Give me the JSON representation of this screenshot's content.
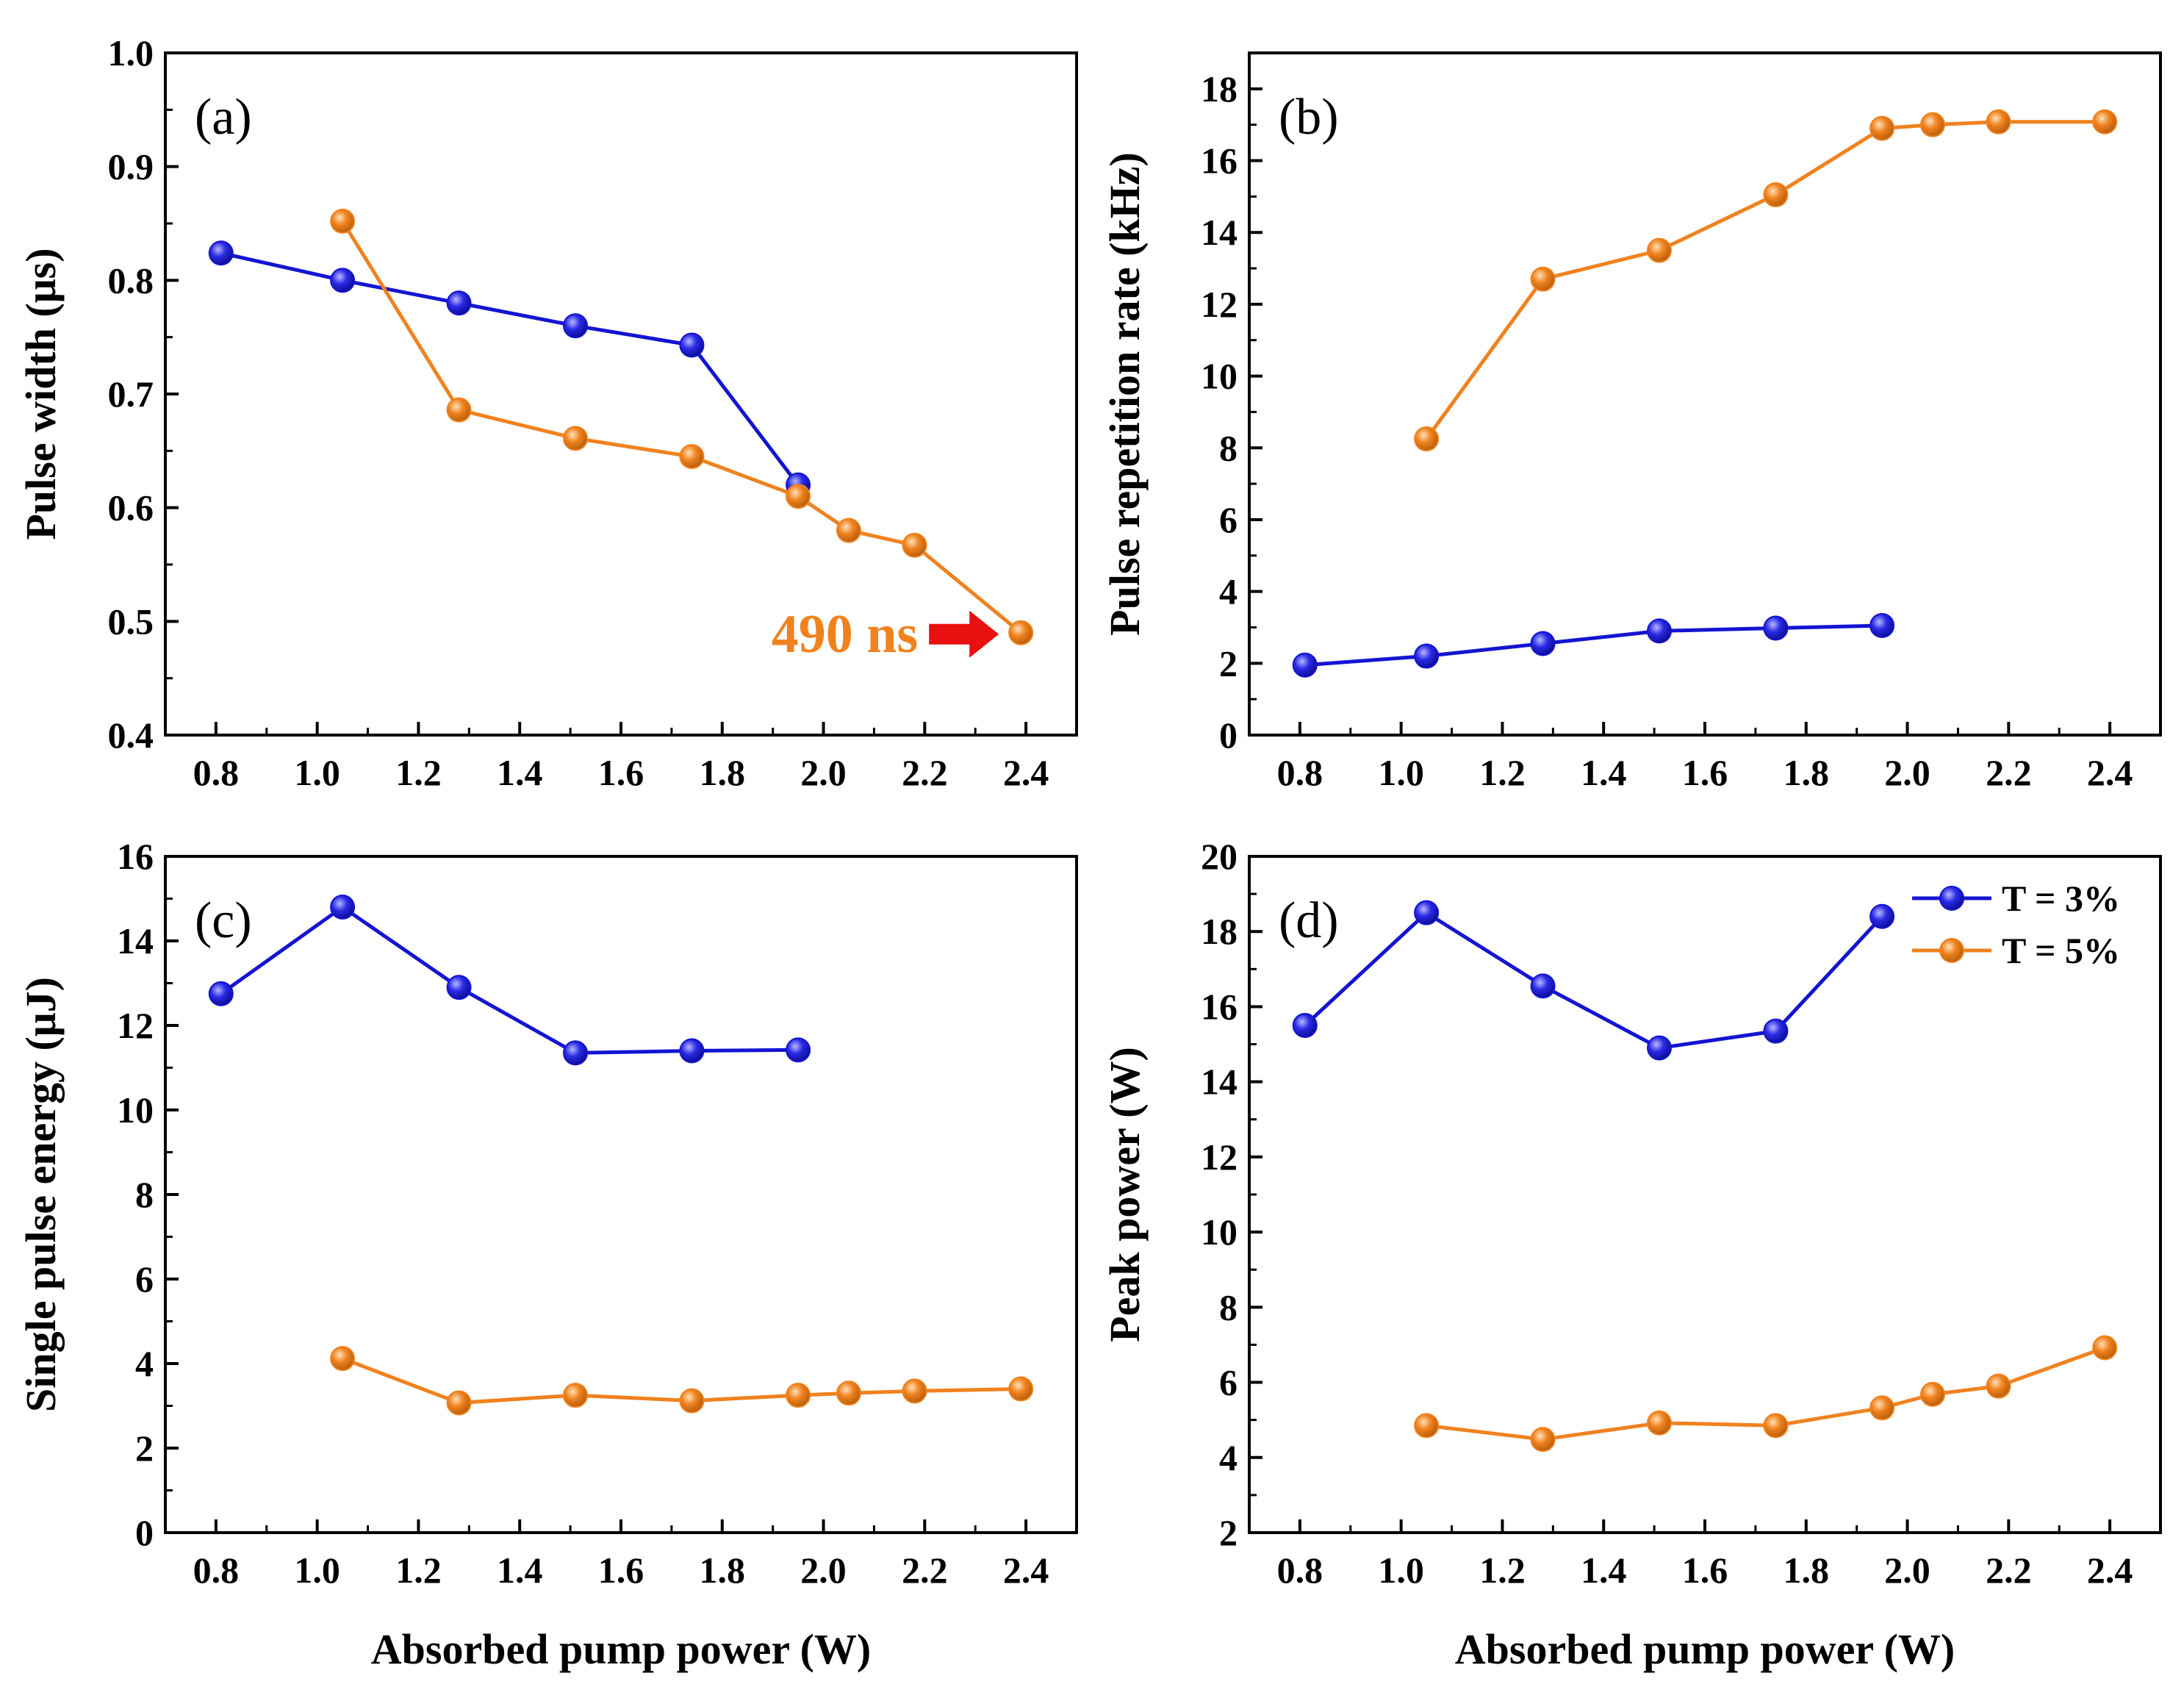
{
  "colors": {
    "series_t3": "#1414D2",
    "series_t5": "#F0821E",
    "arrow": "#E81010",
    "axis": "#000000"
  },
  "chart_data": [
    {
      "id": "a",
      "type": "line",
      "panel_label": "(a)",
      "xlabel": "",
      "ylabel": "Pulse width (μs)",
      "xlim": [
        0.7,
        2.5
      ],
      "ylim": [
        0.4,
        1.0
      ],
      "xticks": [
        0.8,
        1.0,
        1.2,
        1.4,
        1.6,
        1.8,
        2.0,
        2.2,
        2.4
      ],
      "yticks": [
        0.4,
        0.5,
        0.6,
        0.7,
        0.8,
        0.9,
        1.0
      ],
      "xtick_labels": [
        "0.8",
        "1.0",
        "1.2",
        "1.4",
        "1.6",
        "1.8",
        "2.0",
        "2.2",
        "2.4"
      ],
      "ytick_labels": [
        "0.4",
        "0.5",
        "0.6",
        "0.7",
        "0.8",
        "0.9",
        "1.0"
      ],
      "series": [
        {
          "name": "T = 3%",
          "x": [
            0.81,
            1.05,
            1.28,
            1.51,
            1.74,
            1.95
          ],
          "y": [
            0.824,
            0.8,
            0.78,
            0.76,
            0.743,
            0.62
          ]
        },
        {
          "name": "T = 5%",
          "x": [
            1.05,
            1.28,
            1.51,
            1.74,
            1.95,
            2.05,
            2.18,
            2.39
          ],
          "y": [
            0.852,
            0.686,
            0.661,
            0.645,
            0.61,
            0.58,
            0.567,
            0.49
          ]
        }
      ],
      "annotation": {
        "text": "490 ns",
        "points_to_x": 2.39,
        "points_to_y": 0.49
      }
    },
    {
      "id": "b",
      "type": "line",
      "panel_label": "(b)",
      "xlabel": "",
      "ylabel": "Pulse repetition rate (kHz)",
      "xlim": [
        0.7,
        2.5
      ],
      "ylim": [
        0,
        19
      ],
      "xticks": [
        0.8,
        1.0,
        1.2,
        1.4,
        1.6,
        1.8,
        2.0,
        2.2,
        2.4
      ],
      "yticks": [
        0,
        2,
        4,
        6,
        8,
        10,
        12,
        14,
        16,
        18
      ],
      "xtick_labels": [
        "0.8",
        "1.0",
        "1.2",
        "1.4",
        "1.6",
        "1.8",
        "2.0",
        "2.2",
        "2.4"
      ],
      "ytick_labels": [
        "0",
        "2",
        "4",
        "6",
        "8",
        "10",
        "12",
        "14",
        "16",
        "18"
      ],
      "series": [
        {
          "name": "T = 3%",
          "x": [
            0.81,
            1.05,
            1.28,
            1.51,
            1.74,
            1.95
          ],
          "y": [
            1.95,
            2.2,
            2.55,
            2.9,
            2.98,
            3.05
          ]
        },
        {
          "name": "T = 5%",
          "x": [
            1.05,
            1.28,
            1.51,
            1.74,
            1.95,
            2.05,
            2.18,
            2.39
          ],
          "y": [
            8.25,
            12.7,
            13.5,
            15.05,
            16.9,
            17.0,
            17.08,
            17.08
          ]
        }
      ]
    },
    {
      "id": "c",
      "type": "line",
      "panel_label": "(c)",
      "xlabel": "Absorbed pump power (W)",
      "ylabel": "Single pulse energy (μJ)",
      "xlim": [
        0.7,
        2.5
      ],
      "ylim": [
        0,
        16
      ],
      "xticks": [
        0.8,
        1.0,
        1.2,
        1.4,
        1.6,
        1.8,
        2.0,
        2.2,
        2.4
      ],
      "yticks": [
        0,
        2,
        4,
        6,
        8,
        10,
        12,
        14,
        16
      ],
      "xtick_labels": [
        "0.8",
        "1.0",
        "1.2",
        "1.4",
        "1.6",
        "1.8",
        "2.0",
        "2.2",
        "2.4"
      ],
      "ytick_labels": [
        "0",
        "2",
        "4",
        "6",
        "8",
        "10",
        "12",
        "14",
        "16"
      ],
      "series": [
        {
          "name": "T = 3%",
          "x": [
            0.81,
            1.05,
            1.28,
            1.51,
            1.74,
            1.95
          ],
          "y": [
            12.75,
            14.8,
            12.9,
            11.35,
            11.4,
            11.42
          ]
        },
        {
          "name": "T = 5%",
          "x": [
            1.05,
            1.28,
            1.51,
            1.74,
            1.95,
            2.05,
            2.18,
            2.39
          ],
          "y": [
            4.12,
            3.07,
            3.25,
            3.12,
            3.25,
            3.3,
            3.35,
            3.4
          ]
        }
      ]
    },
    {
      "id": "d",
      "type": "line",
      "panel_label": "(d)",
      "xlabel": "Absorbed pump power (W)",
      "ylabel": "Peak power (W)",
      "xlim": [
        0.7,
        2.5
      ],
      "ylim": [
        2,
        20
      ],
      "xticks": [
        0.8,
        1.0,
        1.2,
        1.4,
        1.6,
        1.8,
        2.0,
        2.2,
        2.4
      ],
      "yticks": [
        2,
        4,
        6,
        8,
        10,
        12,
        14,
        16,
        18,
        20
      ],
      "xtick_labels": [
        "0.8",
        "1.0",
        "1.2",
        "1.4",
        "1.6",
        "1.8",
        "2.0",
        "2.2",
        "2.4"
      ],
      "ytick_labels": [
        "2",
        "4",
        "6",
        "8",
        "10",
        "12",
        "14",
        "16",
        "18",
        "20"
      ],
      "series": [
        {
          "name": "T = 3%",
          "x": [
            0.81,
            1.05,
            1.28,
            1.51,
            1.74,
            1.95
          ],
          "y": [
            15.5,
            18.5,
            16.55,
            14.9,
            15.35,
            18.4
          ]
        },
        {
          "name": "T = 5%",
          "x": [
            1.05,
            1.28,
            1.51,
            1.74,
            1.95,
            2.05,
            2.18,
            2.39
          ],
          "y": [
            4.85,
            4.48,
            4.92,
            4.85,
            5.32,
            5.68,
            5.9,
            6.92
          ]
        }
      ],
      "legend": {
        "placement": "top-right",
        "entries": [
          "T = 3%",
          "T = 5%"
        ]
      }
    }
  ]
}
